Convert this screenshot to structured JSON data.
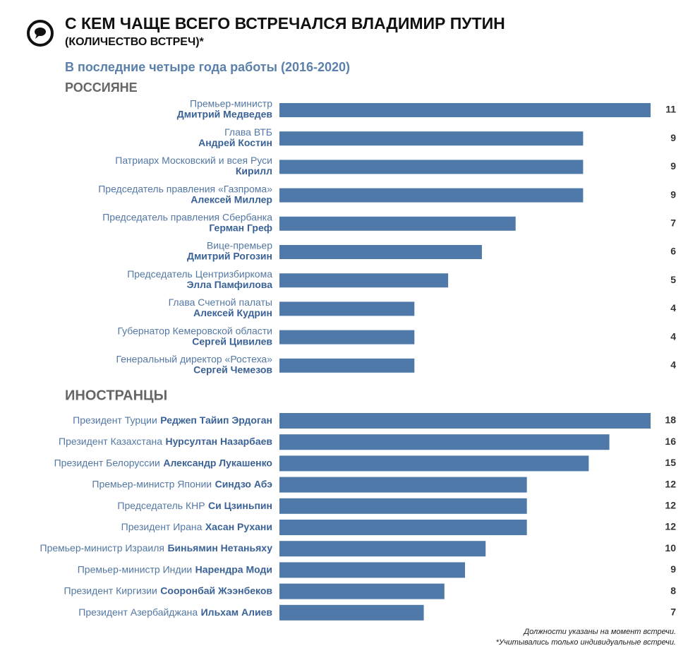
{
  "header": {
    "title": "С КЕМ ЧАЩЕ ВСЕГО ВСТРЕЧАЛСЯ ВЛАДИМИР ПУТИН",
    "title_line2": "(КОЛИЧЕСТВО ВСТРЕЧ)*",
    "subtitle": "В последние четыре года работы (2016-2020)"
  },
  "chart_data": [
    {
      "type": "bar",
      "orientation": "horizontal",
      "title": "РОССИЯНЕ",
      "color": "#4f79a8",
      "positions": [
        "Премьер-министр",
        "Глава ВТБ",
        "Патриарх Московский и всея Руси",
        "Председатель правления «Газпрома»",
        "Председатель правления Сбербанка",
        "Вице-премьер",
        "Председатель Центризбиркома",
        "Глава Счетной палаты",
        "Губернатор Кемеровской области",
        "Генеральный директор «Ростеха»"
      ],
      "categories": [
        "Дмитрий Медведев",
        "Андрей Костин",
        "Кирилл",
        "Алексей Миллер",
        "Герман Греф",
        "Дмитрий Рогозин",
        "Элла Памфилова",
        "Алексей Кудрин",
        "Сергей Цивилев",
        "Сергей Чемезов"
      ],
      "values": [
        11,
        9,
        9,
        9,
        7,
        6,
        5,
        4,
        4,
        4
      ],
      "xlim": [
        0,
        11
      ]
    },
    {
      "type": "bar",
      "orientation": "horizontal",
      "title": "ИНОСТРАНЦЫ",
      "color": "#4f79a8",
      "positions": [
        "Президент Турции",
        "Президент Казахстана",
        "Президент Белоруссии",
        "Премьер-министр Японии",
        "Председатель КНР",
        "Президент Ирана",
        "Премьер-министр Израиля",
        "Премьер-министр Индии",
        "Президент Киргизии",
        "Президент Азербайджана"
      ],
      "categories": [
        "Реджеп Тайип Эрдоган",
        "Нурсултан Назарбаев",
        "Александр Лукашенко",
        "Синдзо Абэ",
        "Си Цзиньпин",
        "Хасан Рухани",
        "Биньямин Нетаньяху",
        "Нарендра Моди",
        "Сооронбай Жээнбеков",
        "Ильхам Алиев"
      ],
      "values": [
        18,
        16,
        15,
        12,
        12,
        12,
        10,
        9,
        8,
        7
      ],
      "xlim": [
        0,
        18
      ]
    }
  ],
  "footnotes": [
    "Должности указаны на момент встречи.",
    "*Учитывались только индивидуальные встречи."
  ]
}
